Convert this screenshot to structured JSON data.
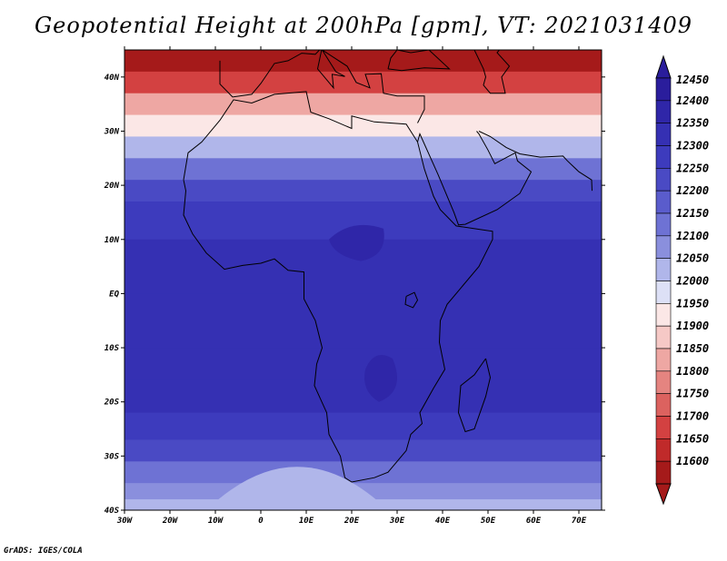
{
  "title": "Geopotential Height at 200hPa [gpm], VT: 2021031409",
  "credit": "GrADS: IGES/COLA",
  "map": {
    "lon_range": [
      -30,
      75
    ],
    "lat_range": [
      -40,
      45
    ],
    "lat_ticks": [
      {
        "value": 40,
        "label": "40N"
      },
      {
        "value": 30,
        "label": "30N"
      },
      {
        "value": 20,
        "label": "20N"
      },
      {
        "value": 10,
        "label": "10N"
      },
      {
        "value": 0,
        "label": "EQ"
      },
      {
        "value": -10,
        "label": "10S"
      },
      {
        "value": -20,
        "label": "20S"
      },
      {
        "value": -30,
        "label": "30S"
      },
      {
        "value": -40,
        "label": "40S"
      }
    ],
    "lon_ticks": [
      {
        "value": -30,
        "label": "30W"
      },
      {
        "value": -20,
        "label": "20W"
      },
      {
        "value": -10,
        "label": "10W"
      },
      {
        "value": 0,
        "label": "0"
      },
      {
        "value": 10,
        "label": "10E"
      },
      {
        "value": 20,
        "label": "20E"
      },
      {
        "value": 30,
        "label": "30E"
      },
      {
        "value": 40,
        "label": "40E"
      },
      {
        "value": 50,
        "label": "50E"
      },
      {
        "value": 60,
        "label": "60E"
      },
      {
        "value": 70,
        "label": "70E"
      }
    ]
  },
  "colorbar": {
    "levels": [
      "12450",
      "12400",
      "12350",
      "12300",
      "12250",
      "12200",
      "12150",
      "12100",
      "12050",
      "12000",
      "11950",
      "11900",
      "11850",
      "11800",
      "11750",
      "11700",
      "11650",
      "11600"
    ],
    "colors": [
      "#2a1d9c",
      "#2f26a8",
      "#3530b3",
      "#3d3bbd",
      "#4a4ac4",
      "#5a5ccc",
      "#6e72d4",
      "#8a8fdd",
      "#b0b6ea",
      "#dde0f6",
      "#fbe7e6",
      "#f6c9c6",
      "#eea7a3",
      "#e58480",
      "#dc625f",
      "#d34141",
      "#c02a2a",
      "#a51a1a"
    ]
  },
  "field": {
    "description_free": true,
    "bands": [
      {
        "lat": 45,
        "value": 11620
      },
      {
        "lat": 41,
        "value": 11720
      },
      {
        "lat": 37,
        "value": 11850
      },
      {
        "lat": 33,
        "value": 11980
      },
      {
        "lat": 29,
        "value": 12080
      },
      {
        "lat": 25,
        "value": 12180
      },
      {
        "lat": 21,
        "value": 12260
      },
      {
        "lat": 17,
        "value": 12320
      },
      {
        "lat": 10,
        "value": 12380
      },
      {
        "lat": 0,
        "value": 12390
      },
      {
        "lat": -10,
        "value": 12390
      },
      {
        "lat": -16,
        "value": 12370
      },
      {
        "lat": -22,
        "value": 12320
      },
      {
        "lat": -27,
        "value": 12250
      },
      {
        "lat": -31,
        "value": 12180
      },
      {
        "lat": -35,
        "value": 12110
      },
      {
        "lat": -38,
        "value": 12050
      },
      {
        "lat": -40,
        "value": 12010
      }
    ]
  }
}
